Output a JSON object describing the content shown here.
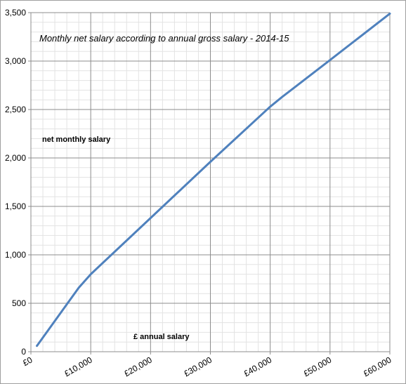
{
  "chart_data": {
    "type": "line",
    "title": "Monthly net salary according to annual gross salary - 2014-15",
    "xlabel": "",
    "ylabel": "",
    "annotations": [
      "net monthly salary",
      "£ annual salary"
    ],
    "xlim": [
      0,
      60000
    ],
    "ylim": [
      0,
      3500
    ],
    "x_ticks": [
      0,
      10000,
      20000,
      30000,
      40000,
      50000,
      60000
    ],
    "x_tick_labels": [
      "£0",
      "£10,000",
      "£20,000",
      "£30,000",
      "£40,000",
      "£50,000",
      "£60,000"
    ],
    "y_ticks": [
      0,
      500,
      1000,
      1500,
      2000,
      2500,
      3000,
      3500
    ],
    "y_tick_labels": [
      "0",
      "500",
      "1,000",
      "1,500",
      "2,000",
      "2,500",
      "3,000",
      "3,500"
    ],
    "grid": true,
    "series": [
      {
        "color": "#4f81bd",
        "x": [
          1000,
          8000,
          10000,
          20000,
          30000,
          40000,
          42000,
          50000,
          60000
        ],
        "y": [
          60,
          660,
          800,
          1380,
          1960,
          2530,
          2630,
          3010,
          3490
        ]
      }
    ]
  }
}
